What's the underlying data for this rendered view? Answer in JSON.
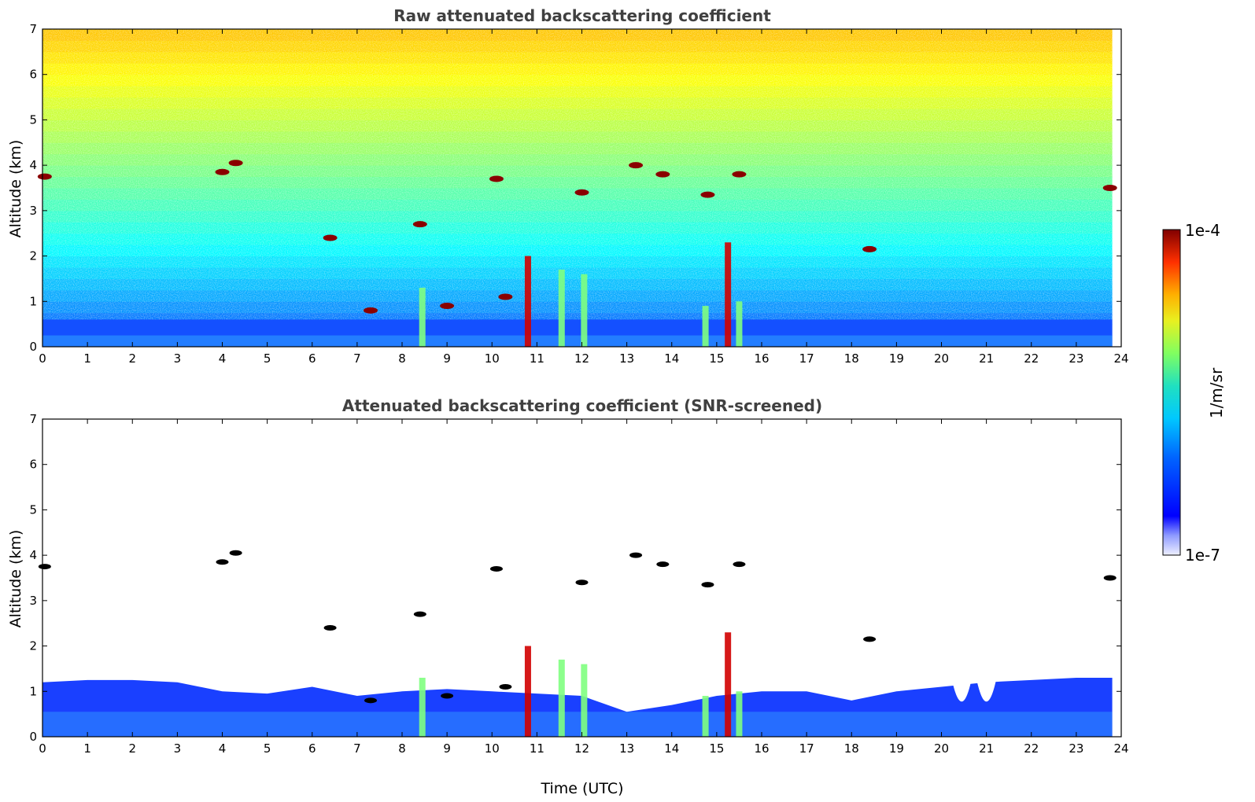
{
  "chart_data": [
    {
      "type": "heatmap",
      "title": "Raw attenuated backscattering coefficient",
      "xlabel": "",
      "ylabel": "Altitude (km)",
      "xlim": [
        0,
        24
      ],
      "ylim": [
        0,
        7
      ],
      "xticks": [
        0,
        1,
        2,
        3,
        4,
        5,
        6,
        7,
        8,
        9,
        10,
        11,
        12,
        13,
        14,
        15,
        16,
        17,
        18,
        19,
        20,
        21,
        22,
        23,
        24
      ],
      "yticks": [
        0,
        1,
        2,
        3,
        4,
        5,
        6,
        7
      ],
      "data_end_time": 23.8,
      "boundary_layer_top_km": 0.6,
      "cloud_layers": [
        {
          "time": 0.05,
          "alt": 3.75
        },
        {
          "time": 4.0,
          "alt": 3.85
        },
        {
          "time": 4.3,
          "alt": 4.05
        },
        {
          "time": 6.4,
          "alt": 2.4
        },
        {
          "time": 7.3,
          "alt": 0.8
        },
        {
          "time": 8.4,
          "alt": 2.7
        },
        {
          "time": 9.0,
          "alt": 0.9
        },
        {
          "time": 10.1,
          "alt": 3.7
        },
        {
          "time": 10.3,
          "alt": 1.1
        },
        {
          "time": 12.0,
          "alt": 3.4
        },
        {
          "time": 13.2,
          "alt": 4.0
        },
        {
          "time": 13.8,
          "alt": 3.8
        },
        {
          "time": 14.8,
          "alt": 3.35
        },
        {
          "time": 15.5,
          "alt": 3.8
        },
        {
          "time": 18.4,
          "alt": 2.15
        },
        {
          "time": 23.75,
          "alt": 3.5
        }
      ],
      "precipitation_columns": [
        {
          "time": 8.45,
          "top_km": 1.3
        },
        {
          "time": 10.8,
          "top_km": 2.0
        },
        {
          "time": 11.55,
          "top_km": 1.7
        },
        {
          "time": 12.05,
          "top_km": 1.6
        },
        {
          "time": 14.75,
          "top_km": 0.9
        },
        {
          "time": 15.25,
          "top_km": 2.3
        },
        {
          "time": 15.5,
          "top_km": 1.0
        }
      ]
    },
    {
      "type": "heatmap",
      "title": "Attenuated backscattering coefficient (SNR-screened)",
      "xlabel": "Time (UTC)",
      "ylabel": "Altitude (km)",
      "xlim": [
        0,
        24
      ],
      "ylim": [
        0,
        7
      ],
      "xticks": [
        0,
        1,
        2,
        3,
        4,
        5,
        6,
        7,
        8,
        9,
        10,
        11,
        12,
        13,
        14,
        15,
        16,
        17,
        18,
        19,
        20,
        21,
        22,
        23,
        24
      ],
      "yticks": [
        0,
        1,
        2,
        3,
        4,
        5,
        6,
        7
      ],
      "data_end_time": 23.8,
      "boundary_layer_top_km": [
        [
          0,
          1.2
        ],
        [
          1,
          1.25
        ],
        [
          2,
          1.25
        ],
        [
          3,
          1.2
        ],
        [
          4,
          1.0
        ],
        [
          5,
          0.95
        ],
        [
          6,
          1.1
        ],
        [
          7,
          0.9
        ],
        [
          8,
          1.0
        ],
        [
          9,
          1.05
        ],
        [
          10,
          1.0
        ],
        [
          11,
          0.95
        ],
        [
          12,
          0.9
        ],
        [
          13,
          0.55
        ],
        [
          14,
          0.7
        ],
        [
          15,
          0.9
        ],
        [
          16,
          1.0
        ],
        [
          17,
          1.0
        ],
        [
          18,
          0.8
        ],
        [
          19,
          1.0
        ],
        [
          20,
          1.1
        ],
        [
          21,
          1.2
        ],
        [
          22,
          1.25
        ],
        [
          23,
          1.3
        ],
        [
          23.8,
          1.3
        ]
      ],
      "boundary_layer_gaps": [
        {
          "time": 20.45,
          "bottom_km": 0.45
        },
        {
          "time": 21.0,
          "bottom_km": 0.45
        }
      ]
    }
  ],
  "colorbar": {
    "label": "1/m/sr",
    "max_label": "1e-4",
    "min_label": "1e-7",
    "scale": "log",
    "colormap": "jet"
  }
}
